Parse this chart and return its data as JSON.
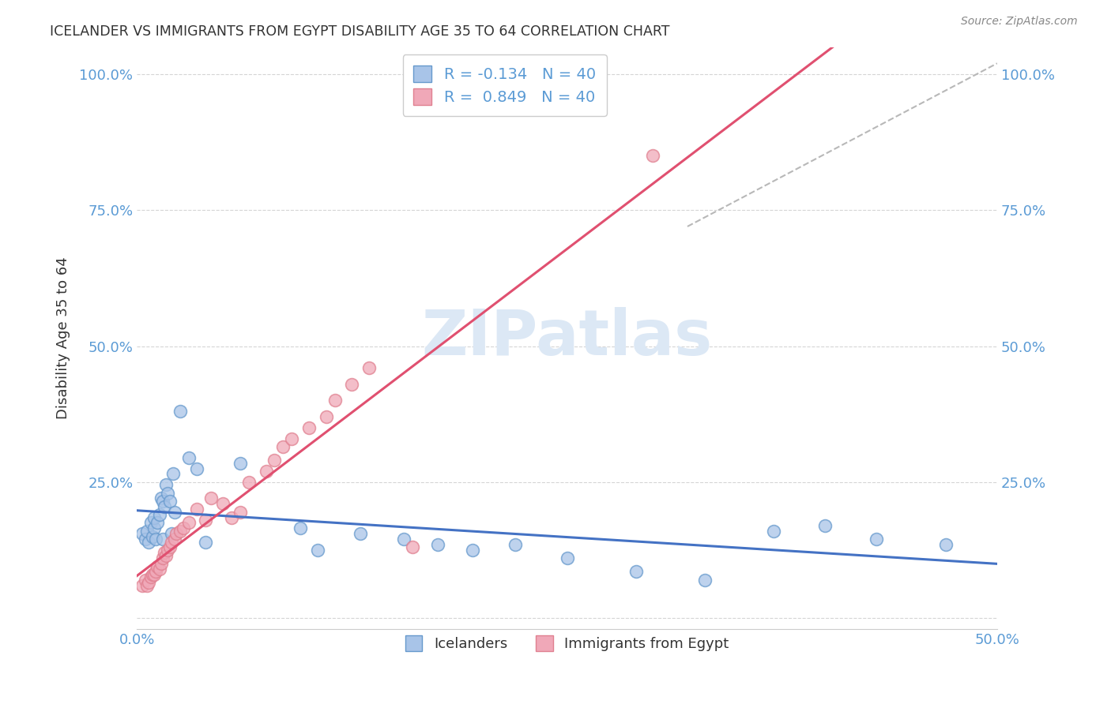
{
  "title": "ICELANDER VS IMMIGRANTS FROM EGYPT DISABILITY AGE 35 TO 64 CORRELATION CHART",
  "source": "Source: ZipAtlas.com",
  "ylabel_label": "Disability Age 35 to 64",
  "xlim": [
    0.0,
    0.5
  ],
  "ylim": [
    -0.02,
    1.05
  ],
  "ytick_positions": [
    0.0,
    0.25,
    0.5,
    0.75,
    1.0
  ],
  "ytick_labels_left": [
    "",
    "25.0%",
    "50.0%",
    "75.0%",
    "100.0%"
  ],
  "ytick_labels_right": [
    "",
    "25.0%",
    "50.0%",
    "75.0%",
    "100.0%"
  ],
  "xtick_positions": [
    0.0,
    0.1,
    0.2,
    0.3,
    0.4,
    0.5
  ],
  "xtick_labels": [
    "0.0%",
    "",
    "",
    "",
    "",
    "50.0%"
  ],
  "legend_line1": "R = -0.134   N = 40",
  "legend_line2": "R =  0.849   N = 40",
  "legend_label1": "Icelanders",
  "legend_label2": "Immigrants from Egypt",
  "scatter_icelander_x": [
    0.003,
    0.005,
    0.006,
    0.007,
    0.008,
    0.009,
    0.01,
    0.01,
    0.011,
    0.012,
    0.013,
    0.014,
    0.015,
    0.015,
    0.016,
    0.017,
    0.018,
    0.019,
    0.02,
    0.021,
    0.022,
    0.025,
    0.03,
    0.035,
    0.04,
    0.06,
    0.095,
    0.105,
    0.13,
    0.155,
    0.175,
    0.195,
    0.22,
    0.25,
    0.29,
    0.33,
    0.37,
    0.4,
    0.43,
    0.47
  ],
  "scatter_icelander_y": [
    0.155,
    0.145,
    0.16,
    0.14,
    0.175,
    0.15,
    0.165,
    0.185,
    0.145,
    0.175,
    0.19,
    0.22,
    0.145,
    0.215,
    0.205,
    0.245,
    0.23,
    0.215,
    0.155,
    0.265,
    0.195,
    0.38,
    0.295,
    0.275,
    0.14,
    0.285,
    0.165,
    0.125,
    0.155,
    0.145,
    0.135,
    0.125,
    0.135,
    0.11,
    0.085,
    0.07,
    0.16,
    0.17,
    0.145,
    0.135
  ],
  "scatter_egypt_x": [
    0.003,
    0.005,
    0.006,
    0.007,
    0.008,
    0.009,
    0.01,
    0.011,
    0.012,
    0.013,
    0.014,
    0.015,
    0.016,
    0.017,
    0.018,
    0.019,
    0.02,
    0.022,
    0.023,
    0.025,
    0.027,
    0.03,
    0.035,
    0.04,
    0.043,
    0.05,
    0.055,
    0.06,
    0.065,
    0.075,
    0.08,
    0.085,
    0.09,
    0.1,
    0.11,
    0.115,
    0.125,
    0.135,
    0.16,
    0.3
  ],
  "scatter_egypt_y": [
    0.06,
    0.07,
    0.06,
    0.065,
    0.075,
    0.08,
    0.08,
    0.085,
    0.095,
    0.09,
    0.1,
    0.11,
    0.12,
    0.115,
    0.125,
    0.13,
    0.14,
    0.145,
    0.155,
    0.16,
    0.165,
    0.175,
    0.2,
    0.18,
    0.22,
    0.21,
    0.185,
    0.195,
    0.25,
    0.27,
    0.29,
    0.315,
    0.33,
    0.35,
    0.37,
    0.4,
    0.43,
    0.46,
    0.13,
    0.85
  ],
  "color_icelander_fill": "#a8c4e8",
  "color_icelander_edge": "#6699cc",
  "color_egypt_fill": "#f0a8b8",
  "color_egypt_edge": "#e08090",
  "line_color_icelander": "#4472c4",
  "line_color_egypt": "#e05070",
  "diag_line_color": "#b8b8b8",
  "background_color": "#ffffff",
  "title_color": "#333333",
  "ylabel_color": "#333333",
  "tick_color": "#5b9bd5",
  "watermark_text": "ZIPatlas",
  "watermark_color": "#dce8f5"
}
